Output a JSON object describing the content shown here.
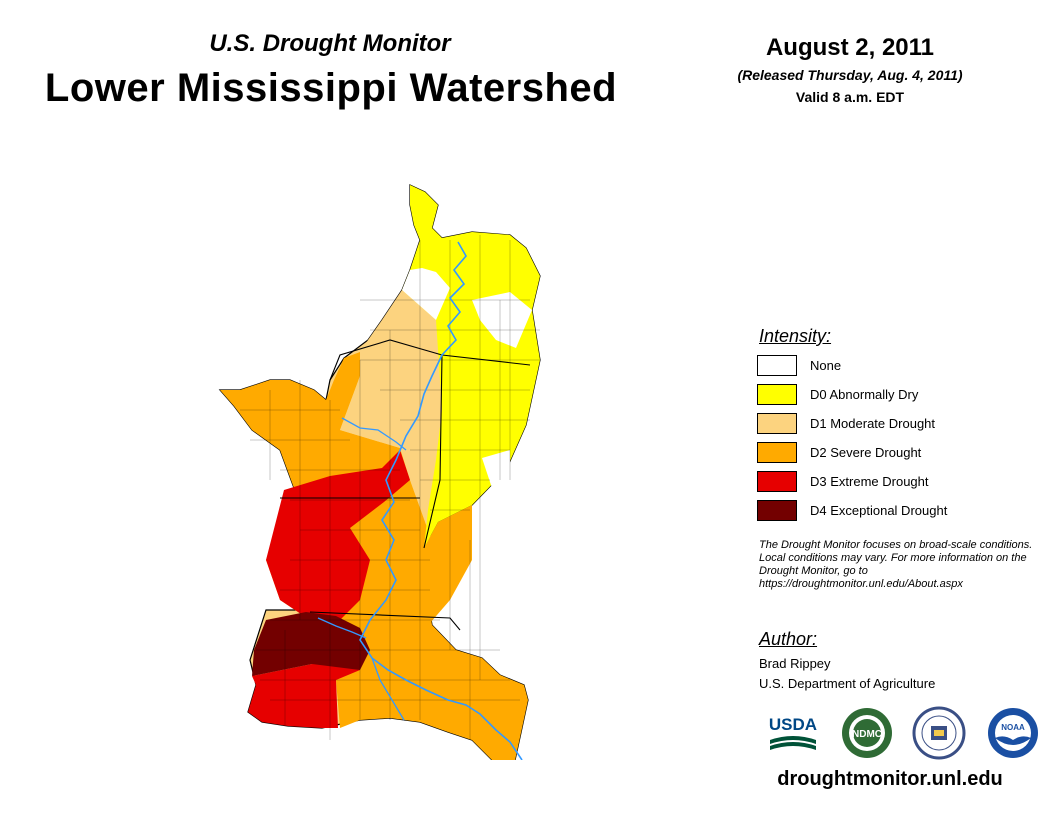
{
  "header": {
    "subtitle": "U.S. Drought Monitor",
    "title": "Lower Mississippi Watershed",
    "date": "August 2, 2011",
    "released": "(Released Thursday, Aug. 4, 2011)",
    "valid": "Valid 8 a.m. EDT"
  },
  "legend": {
    "heading": "Intensity:",
    "items": [
      {
        "label": "None",
        "color": "#ffffff"
      },
      {
        "label": "D0 Abnormally Dry",
        "color": "#ffff00"
      },
      {
        "label": "D1 Moderate Drought",
        "color": "#fcd37f"
      },
      {
        "label": "D2 Severe Drought",
        "color": "#ffaa00"
      },
      {
        "label": "D3 Extreme Drought",
        "color": "#e60000"
      },
      {
        "label": "D4 Exceptional Drought",
        "color": "#730000"
      }
    ]
  },
  "note": "The Drought Monitor focuses on broad-scale conditions. Local conditions may vary. For more information on the Drought Monitor, go to https://droughtmonitor.unl.edu/About.aspx",
  "author": {
    "heading": "Author:",
    "name": "Brad Rippey",
    "organization": "U.S. Department of Agriculture"
  },
  "logos": [
    {
      "name": "usda-logo",
      "text": "USDA"
    },
    {
      "name": "ndmc-logo",
      "text": "NDMC"
    },
    {
      "name": "commerce-logo",
      "text": ""
    },
    {
      "name": "noaa-logo",
      "text": "NOAA"
    }
  ],
  "website": "droughtmonitor.unl.edu",
  "map": {
    "river_color": "#3399ff"
  }
}
